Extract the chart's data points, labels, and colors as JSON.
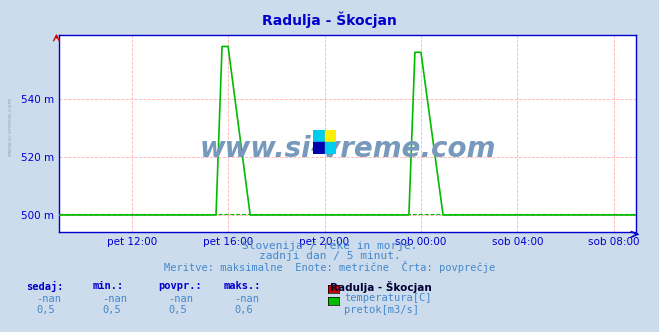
{
  "title": "Radulja - Škocjan",
  "background_color": "#ccdcec",
  "plot_bg_color": "#ffffff",
  "grid_color": "#ffb0b0",
  "avg_line_color": "#00bb00",
  "flow_line_color": "#00bb00",
  "temp_line_color": "#cc0000",
  "axis_color": "#0000cc",
  "text_color": "#4488cc",
  "title_color": "#0000cc",
  "ylabel_ticks": [
    "500 m",
    "520 m",
    "540 m"
  ],
  "ylabel_vals": [
    500,
    520,
    540
  ],
  "ylim": [
    494,
    562
  ],
  "xlabel_ticks": [
    "pet 12:00",
    "pet 16:00",
    "pet 20:00",
    "sob 00:00",
    "sob 04:00",
    "sob 08:00"
  ],
  "xlabel_vals": [
    36,
    84,
    132,
    180,
    228,
    276
  ],
  "total_points": 288,
  "subtitle1": "Slovenija / reke in morje.",
  "subtitle2": "zadnji dan / 5 minut.",
  "subtitle3": "Meritve: maksimalne  Enote: metrične  Črta: povprečje",
  "legend_title": "Radulja - Škocjan",
  "legend_items": [
    {
      "label": "temperatura[C]",
      "color": "#cc0000"
    },
    {
      "label": "pretok[m3/s]",
      "color": "#00bb00"
    }
  ],
  "table_headers": [
    "sedaj:",
    "min.:",
    "povpr.:",
    "maks.:"
  ],
  "table_row1": [
    "-nan",
    "-nan",
    "-nan",
    "-nan"
  ],
  "table_row2": [
    "0,5",
    "0,5",
    "0,5",
    "0,6"
  ],
  "watermark_text": "www.si-vreme.com",
  "watermark_color": "#7799bb",
  "avg_flow_value": 500.5,
  "spike1_start": 78,
  "spike1_peak": 82,
  "spike1_peak_end": 84,
  "spike1_end": 96,
  "spike1_height": 558,
  "spike2_start": 174,
  "spike2_peak": 178,
  "spike2_peak_end": 180,
  "spike2_end": 192,
  "spike2_height": 556,
  "base_flow": 500,
  "logo_colors": [
    "#00ccff",
    "#ffff00",
    "#0000aa",
    "#00ccff"
  ],
  "left_margin_text": "www.si-vreme.com",
  "xlim": [
    0,
    287
  ]
}
